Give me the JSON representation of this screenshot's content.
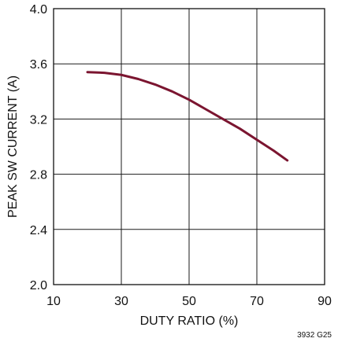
{
  "chart_data": {
    "type": "line",
    "title": "",
    "xlabel": "DUTY RATIO (%)",
    "ylabel": "PEAK SW CURRENT (A)",
    "xlim": [
      10,
      90
    ],
    "ylim": [
      2.0,
      4.0
    ],
    "xticks": [
      10,
      30,
      50,
      70,
      90
    ],
    "yticks": [
      2.0,
      2.4,
      2.8,
      3.2,
      3.6,
      4.0
    ],
    "xtick_labels": [
      "10",
      "30",
      "50",
      "70",
      "90"
    ],
    "ytick_labels": [
      "2.0",
      "2.4",
      "2.8",
      "3.2",
      "3.6",
      "4.0"
    ],
    "grid": true,
    "series": [
      {
        "color": "#7b1530",
        "x": [
          20,
          25,
          30,
          35,
          40,
          45,
          50,
          55,
          60,
          65,
          70,
          75,
          79
        ],
        "y": [
          3.54,
          3.535,
          3.52,
          3.49,
          3.45,
          3.4,
          3.34,
          3.27,
          3.2,
          3.13,
          3.05,
          2.97,
          2.9
        ]
      }
    ],
    "figure_code": "3932 G25"
  }
}
